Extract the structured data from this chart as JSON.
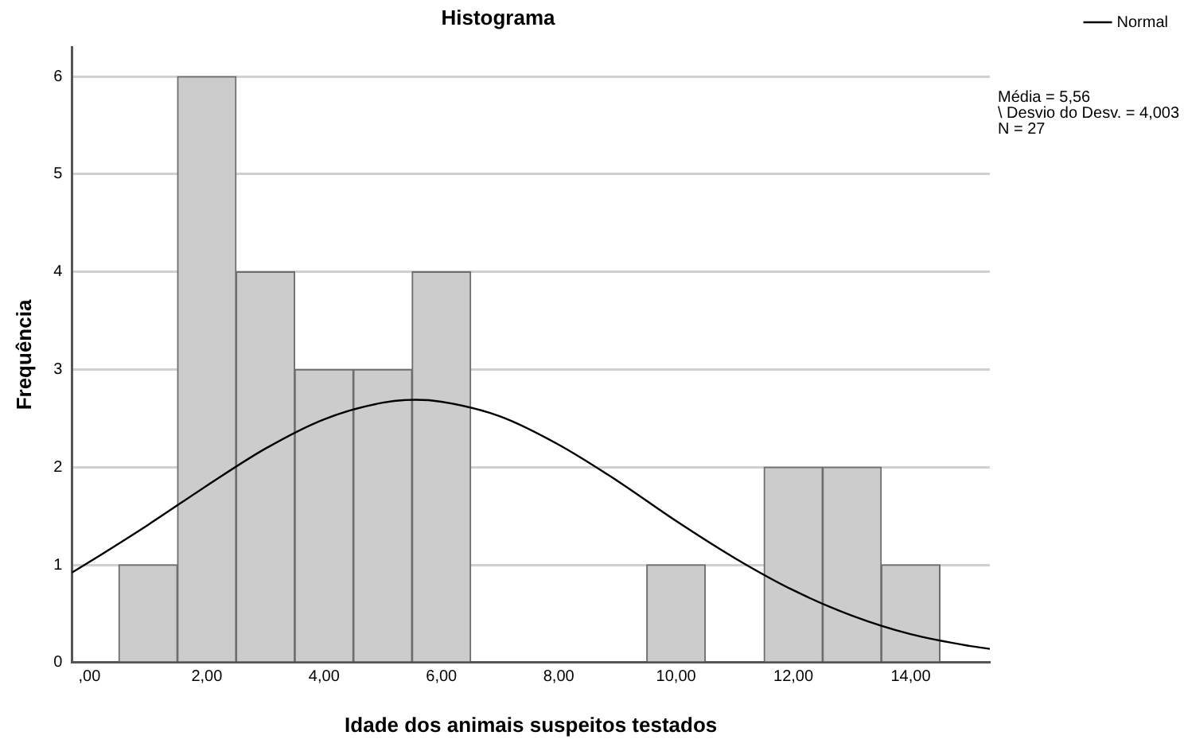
{
  "chart_data": {
    "type": "histogram",
    "title": "Histograma",
    "xlabel": "Idade dos animais suspeitos testados",
    "ylabel": "Frequência",
    "bins": [
      0.5,
      1.5,
      2.5,
      3.5,
      4.5,
      5.5,
      6.5,
      7.5,
      8.5,
      9.5,
      10.5,
      11.5,
      12.5,
      13.5,
      14.5
    ],
    "values": [
      1,
      6,
      4,
      3,
      3,
      4,
      0,
      0,
      0,
      1,
      0,
      2,
      2,
      1
    ],
    "color": "#cccccc",
    "series": [
      {
        "name": "Normal",
        "type": "line",
        "color": "#000000",
        "x": [
          -0.3,
          0,
          1,
          2,
          3,
          4,
          5,
          5.56,
          6,
          7,
          8,
          9,
          10,
          11,
          12,
          13,
          14,
          15,
          15.35
        ],
        "values": [
          0.92,
          1.03,
          1.41,
          1.81,
          2.19,
          2.49,
          2.66,
          2.69,
          2.67,
          2.52,
          2.23,
          1.86,
          1.45,
          1.07,
          0.74,
          0.48,
          0.29,
          0.17,
          0.14
        ]
      }
    ],
    "xlim": [
      -0.3,
      15.35
    ],
    "xticks": [
      {
        "value": 0,
        "label": ",00"
      },
      {
        "value": 2,
        "label": "2,00"
      },
      {
        "value": 4,
        "label": "4,00"
      },
      {
        "value": 6,
        "label": "6,00"
      },
      {
        "value": 8,
        "label": "8,00"
      },
      {
        "value": 10,
        "label": "10,00"
      },
      {
        "value": 12,
        "label": "12,00"
      },
      {
        "value": 14,
        "label": "14,00"
      }
    ],
    "ylim": [
      0,
      6.3
    ],
    "yticks": [
      0,
      1,
      2,
      3,
      4,
      5,
      6
    ],
    "grid": "y",
    "legend": "top right",
    "marker": "none",
    "line_style": "solid",
    "annotations": [
      "Média = 5,56",
      "\\ Desvio do Desv. = 4,003",
      "N = 27"
    ]
  }
}
